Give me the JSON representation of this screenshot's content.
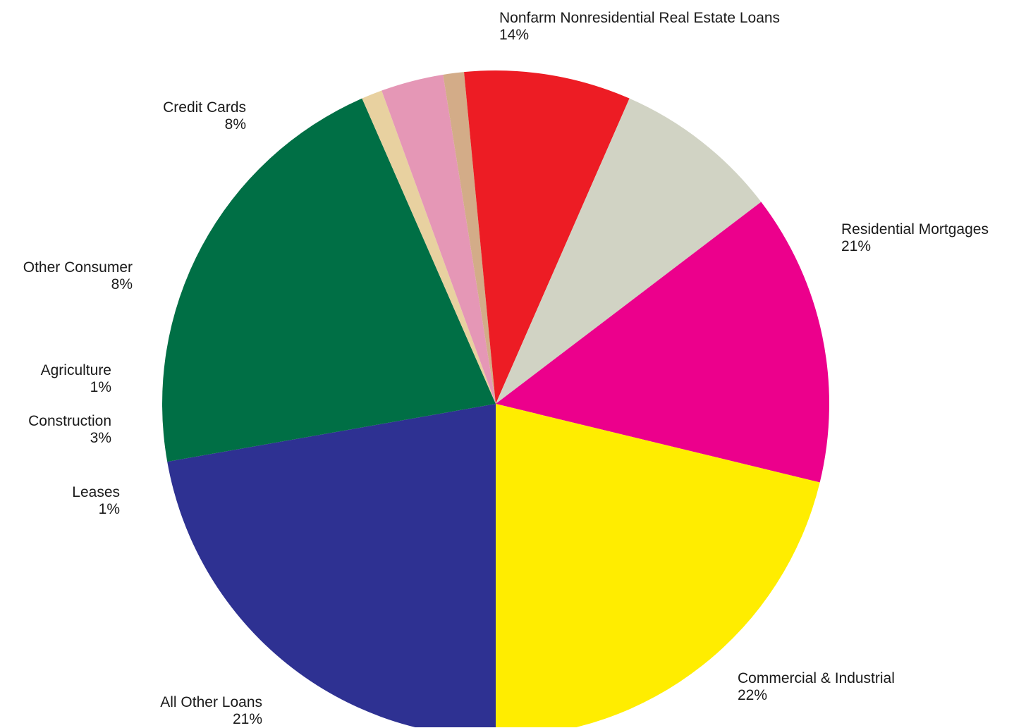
{
  "chart_data": {
    "type": "pie",
    "title": "",
    "slices": [
      {
        "label": "Commercial & Industrial",
        "percent_label": "22%",
        "value": 22,
        "color": "#2E3192"
      },
      {
        "label": "All Other Loans",
        "percent_label": "21%",
        "value": 21,
        "color": "#006F45"
      },
      {
        "label": "Leases",
        "percent_label": "1%",
        "value": 1,
        "color": "#E8D1A0"
      },
      {
        "label": "Construction",
        "percent_label": "3%",
        "value": 3,
        "color": "#E597B6"
      },
      {
        "label": "Agriculture",
        "percent_label": "1%",
        "value": 1,
        "color": "#D3AC88"
      },
      {
        "label": "Other Consumer",
        "percent_label": "8%",
        "value": 8,
        "color": "#ED1C24"
      },
      {
        "label": "Credit Cards",
        "percent_label": "8%",
        "value": 8,
        "color": "#D1D3C4"
      },
      {
        "label": "Nonfarm Nonresidential Real Estate Loans",
        "percent_label": "14%",
        "value": 14,
        "color": "#EC008C"
      },
      {
        "label": "Residential Mortgages",
        "percent_label": "21%",
        "value": 21,
        "color": "#FFED00"
      }
    ],
    "start_angle_deg": 90,
    "direction": "clockwise"
  }
}
